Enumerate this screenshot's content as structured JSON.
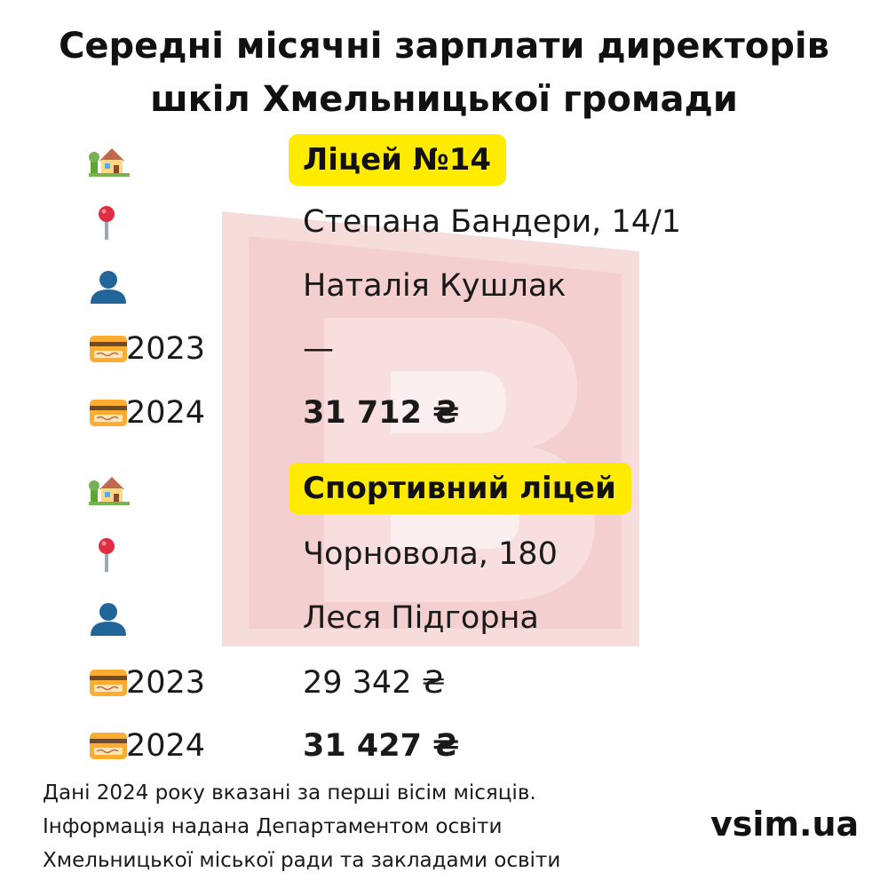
{
  "title": {
    "line1": "Середні місячні зарплати директорів",
    "line2": "шкіл Хмельницької громади"
  },
  "schools": [
    {
      "name": "Ліцей №14",
      "address": "Степана Бандери, 14/1",
      "director": "Наталія Кушлак",
      "salary_2023_label": "2023",
      "salary_2023": "—",
      "salary_2024_label": "2024",
      "salary_2024": "31 712 ₴"
    },
    {
      "name": "Спортивний ліцей",
      "address": "Чорновола, 180",
      "director": "Леся Підгорна",
      "salary_2023_label": "2023",
      "salary_2023": "29 342 ₴",
      "salary_2024_label": "2024",
      "salary_2024": "31 427 ₴"
    }
  ],
  "icons": {
    "school": "house-with-garden-icon",
    "address": "round-pushpin-icon",
    "director": "bust-silhouette-icon",
    "salary": "credit-card-icon"
  },
  "footnote": {
    "line1": "Дані 2024 року вказані за перші вісім місяців.",
    "line2": "Інформація надана Департаментом освіти",
    "line3": "Хмельницької міської ради та закладами освіти"
  },
  "brand": "vsim.ua",
  "colors": {
    "highlight": "#ffeb00",
    "watermark": "#f4caca",
    "text": "#141414"
  }
}
